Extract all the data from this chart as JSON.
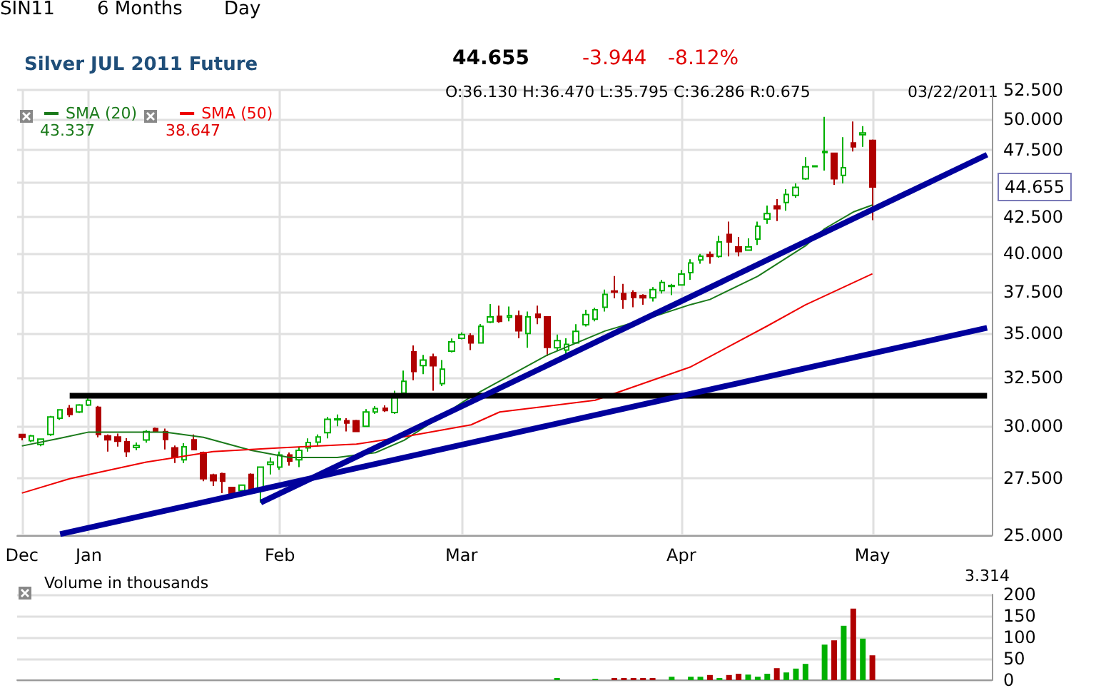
{
  "chart_data": [
    {
      "type": "candlestick",
      "title": "Silver JUL 2011 Future",
      "categories": [
        "Dec",
        null,
        null,
        null,
        null,
        null,
        null,
        "Jan",
        null,
        null,
        null,
        null,
        null,
        null,
        null,
        null,
        null,
        null,
        null,
        null,
        null,
        null,
        null,
        null,
        null,
        null,
        null,
        "Feb",
        null,
        null,
        null,
        null,
        null,
        null,
        null,
        null,
        null,
        null,
        null,
        null,
        null,
        null,
        null,
        null,
        null,
        null,
        "Mar",
        null,
        null,
        null,
        null,
        null,
        null,
        null,
        null,
        null,
        null,
        null,
        null,
        null,
        null,
        null,
        null,
        null,
        null,
        null,
        null,
        null,
        null,
        "Apr",
        null,
        null,
        null,
        null,
        null,
        null,
        null,
        null,
        null,
        null,
        null,
        null,
        null,
        null,
        null,
        null,
        null,
        null,
        null,
        "May",
        null,
        null,
        null,
        null,
        null,
        null,
        null,
        null,
        null,
        null,
        null,
        null
      ],
      "ohlc": [
        [
          29.57,
          29.6,
          29.28,
          29.43
        ],
        [
          29.27,
          29.55,
          29.2,
          29.5
        ],
        [
          29.08,
          29.36,
          29.0,
          29.34
        ],
        [
          29.57,
          30.5,
          29.5,
          30.45
        ],
        [
          30.38,
          30.85,
          30.3,
          30.81
        ],
        [
          30.87,
          31.06,
          30.45,
          30.57
        ],
        [
          30.7,
          31.1,
          30.65,
          31.06
        ],
        [
          31.06,
          31.44,
          31.0,
          31.31
        ],
        [
          30.94,
          31.01,
          29.43,
          29.57
        ],
        [
          29.5,
          29.57,
          28.74,
          29.31
        ],
        [
          29.45,
          29.62,
          28.98,
          29.24
        ],
        [
          29.21,
          29.39,
          28.49,
          28.74
        ],
        [
          28.94,
          29.18,
          28.81,
          29.03
        ],
        [
          29.3,
          29.78,
          29.17,
          29.71
        ],
        [
          29.86,
          29.92,
          29.67,
          29.71
        ],
        [
          29.71,
          29.86,
          28.84,
          29.33
        ],
        [
          28.92,
          29.03,
          28.2,
          28.46
        ],
        [
          28.35,
          29.14,
          28.2,
          28.97
        ],
        [
          29.31,
          29.57,
          28.83,
          28.83
        ],
        [
          28.7,
          28.74,
          27.36,
          27.47
        ],
        [
          27.64,
          27.7,
          27.14,
          27.38
        ],
        [
          27.7,
          27.75,
          26.82,
          27.36
        ],
        [
          27.07,
          27.1,
          26.66,
          26.78
        ],
        [
          26.93,
          27.2,
          26.78,
          27.18
        ],
        [
          27.67,
          27.72,
          26.9,
          26.93
        ],
        [
          26.93,
          28.01,
          26.39,
          28.01
        ],
        [
          28.13,
          28.46,
          27.67,
          28.24
        ],
        [
          28.01,
          28.74,
          27.88,
          28.58
        ],
        [
          28.58,
          28.7,
          28.07,
          28.29
        ],
        [
          28.35,
          28.95,
          28.01,
          28.8
        ],
        [
          28.92,
          29.38,
          28.74,
          29.18
        ],
        [
          29.2,
          29.57,
          29.02,
          29.45
        ],
        [
          29.66,
          30.45,
          29.38,
          30.33
        ],
        [
          30.3,
          30.57,
          29.98,
          30.35
        ],
        [
          30.26,
          30.38,
          29.72,
          30.14
        ],
        [
          30.26,
          30.3,
          29.72,
          29.72
        ],
        [
          29.98,
          30.85,
          29.95,
          30.7
        ],
        [
          30.7,
          31.0,
          30.6,
          30.87
        ],
        [
          30.89,
          31.04,
          30.7,
          30.77
        ],
        [
          30.67,
          31.81,
          30.6,
          31.44
        ],
        [
          31.68,
          32.89,
          31.56,
          32.31
        ],
        [
          33.94,
          34.3,
          32.37,
          32.84
        ],
        [
          33.17,
          33.76,
          32.7,
          33.47
        ],
        [
          33.64,
          33.83,
          31.81,
          33.16
        ],
        [
          32.19,
          33.47,
          32.05,
          32.97
        ],
        [
          33.98,
          34.7,
          33.9,
          34.5
        ],
        [
          34.71,
          35.05,
          34.65,
          34.93
        ],
        [
          34.86,
          35.0,
          34.04,
          34.44
        ],
        [
          34.44,
          35.55,
          34.4,
          35.41
        ],
        [
          35.66,
          36.75,
          35.6,
          35.97
        ],
        [
          36.0,
          36.65,
          35.62,
          35.7
        ],
        [
          35.95,
          36.6,
          35.7,
          36.05
        ],
        [
          36.03,
          36.35,
          34.71,
          35.15
        ],
        [
          34.99,
          36.29,
          34.17,
          35.97
        ],
        [
          36.13,
          36.65,
          35.53,
          35.93
        ],
        [
          35.97,
          35.97,
          33.7,
          34.19
        ],
        [
          34.17,
          34.93,
          33.98,
          34.58
        ],
        [
          34.04,
          34.71,
          33.82,
          34.36
        ],
        [
          34.44,
          35.53,
          34.4,
          35.12
        ],
        [
          35.5,
          36.4,
          35.4,
          36.11
        ],
        [
          35.83,
          36.52,
          35.7,
          36.4
        ],
        [
          36.55,
          37.64,
          36.29,
          37.34
        ],
        [
          37.55,
          38.5,
          37.1,
          37.49
        ],
        [
          37.4,
          38.0,
          36.45,
          37.05
        ],
        [
          37.45,
          37.6,
          36.55,
          37.16
        ],
        [
          37.28,
          37.35,
          36.7,
          37.13
        ],
        [
          37.13,
          37.8,
          36.9,
          37.64
        ],
        [
          37.58,
          38.25,
          37.4,
          38.09
        ],
        [
          37.85,
          38.0,
          37.3,
          37.9
        ],
        [
          37.94,
          38.9,
          37.9,
          38.63
        ],
        [
          38.72,
          39.6,
          38.27,
          39.35
        ],
        [
          39.55,
          39.95,
          39.3,
          39.8
        ],
        [
          39.9,
          40.1,
          39.3,
          39.79
        ],
        [
          39.79,
          41.17,
          39.7,
          40.75
        ],
        [
          41.27,
          42.16,
          39.79,
          40.75
        ],
        [
          40.42,
          41.1,
          39.79,
          40.1
        ],
        [
          40.2,
          41.0,
          40.2,
          40.42
        ],
        [
          40.95,
          42.16,
          40.55,
          41.83
        ],
        [
          42.33,
          43.3,
          42.0,
          42.73
        ],
        [
          43.28,
          43.77,
          42.2,
          43.07
        ],
        [
          43.52,
          44.5,
          42.93,
          44.11
        ],
        [
          44.04,
          44.93,
          43.87,
          44.64
        ],
        [
          45.28,
          46.93,
          45.2,
          46.19
        ],
        [
          46.2,
          46.3,
          46.15,
          46.25
        ],
        [
          47.3,
          50.2,
          45.9,
          47.38
        ],
        [
          47.24,
          47.3,
          44.82,
          45.28
        ],
        [
          45.53,
          48.52,
          44.93,
          46.12
        ],
        [
          48.06,
          49.81,
          47.38,
          47.75
        ],
        [
          48.72,
          49.42,
          47.75,
          48.87
        ],
        [
          48.26,
          48.33,
          42.26,
          44.655
        ],
        null,
        null,
        null,
        null,
        null,
        null,
        null,
        null,
        null,
        null,
        null,
        null
      ],
      "colors": [
        "#b00000",
        "#00b000",
        "#00b000",
        "#00b000",
        "#00b000",
        "#b00000",
        "#00b000",
        "#00b000",
        "#b00000",
        "#b00000",
        "#b00000",
        "#b00000",
        "#00b000",
        "#00b000",
        "#b00000",
        "#b00000",
        "#b00000",
        "#00b000",
        "#b00000",
        "#b00000",
        "#b00000",
        "#b00000",
        "#b00000",
        "#00b000",
        "#b00000",
        "#00b000",
        "#00b000",
        "#00b000",
        "#b00000",
        "#00b000",
        "#00b000",
        "#00b000",
        "#00b000",
        "#00b000",
        "#b00000",
        "#b00000",
        "#00b000",
        "#00b000",
        "#b00000",
        "#00b000",
        "#00b000",
        "#b00000",
        "#00b000",
        "#b00000",
        "#00b000",
        "#00b000",
        "#00b000",
        "#b00000",
        "#00b000",
        "#00b000",
        "#b00000",
        "#00b000",
        "#b00000",
        "#00b000",
        "#b00000",
        "#b00000",
        "#00b000",
        "#00b000",
        "#00b000",
        "#00b000",
        "#00b000",
        "#00b000",
        "#b00000",
        "#b00000",
        "#b00000",
        "#b00000",
        "#00b000",
        "#00b000",
        "#00b000",
        "#00b000",
        "#00b000",
        "#00b000",
        "#b00000",
        "#00b000",
        "#b00000",
        "#b00000",
        "#00b000",
        "#00b000",
        "#00b000",
        "#b00000",
        "#00b000",
        "#00b000",
        "#00b000",
        "#00b000",
        "#00b000",
        "#b00000",
        "#00b000",
        "#b00000",
        "#00b000",
        "#b00000",
        null,
        null,
        null,
        null,
        null,
        null,
        null,
        null,
        null,
        null,
        null,
        null
      ],
      "series": [
        {
          "name": "SMA (20)",
          "type": "line",
          "color": "#1a7a1a",
          "values": [
            29.01,
            null,
            null,
            null,
            29.39,
            null,
            null,
            29.69,
            null,
            null,
            null,
            null,
            null,
            null,
            null,
            29.69,
            null,
            null,
            null,
            29.43,
            null,
            null,
            null,
            null,
            28.8,
            null,
            null,
            null,
            28.46,
            null,
            null,
            null,
            null,
            28.46,
            null,
            null,
            null,
            28.69,
            null,
            null,
            29.29,
            null,
            null,
            30.21,
            null,
            null,
            null,
            31.49,
            null,
            null,
            null,
            null,
            null,
            null,
            null,
            33.76,
            null,
            null,
            null,
            null,
            null,
            35.13,
            null,
            null,
            null,
            null,
            35.97,
            null,
            null,
            null,
            36.72,
            null,
            37.03,
            null,
            null,
            null,
            null,
            38.49,
            null,
            null,
            null,
            null,
            40.49,
            null,
            41.66,
            null,
            null,
            42.84,
            null,
            43.34,
            null,
            null,
            null,
            null,
            null,
            null,
            null,
            null,
            null,
            null,
            null,
            null
          ]
        },
        {
          "name": "SMA (50)",
          "type": "line",
          "color": "#ee0000",
          "values": [
            26.82,
            null,
            null,
            null,
            null,
            27.47,
            null,
            null,
            null,
            null,
            null,
            null,
            null,
            28.24,
            null,
            null,
            null,
            null,
            null,
            null,
            28.74,
            null,
            null,
            null,
            null,
            null,
            null,
            28.92,
            null,
            null,
            null,
            null,
            null,
            null,
            null,
            29.1,
            null,
            null,
            null,
            null,
            29.46,
            null,
            null,
            null,
            null,
            null,
            null,
            30.05,
            null,
            null,
            30.7,
            null,
            null,
            null,
            null,
            null,
            null,
            null,
            null,
            null,
            31.31,
            null,
            null,
            null,
            null,
            null,
            null,
            null,
            null,
            null,
            33.1,
            null,
            null,
            null,
            null,
            null,
            null,
            null,
            35.43,
            null,
            null,
            null,
            36.7,
            null,
            null,
            null,
            null,
            null,
            null,
            38.65,
            null,
            null,
            null,
            null,
            null,
            null,
            null,
            null,
            null,
            null,
            null,
            null
          ]
        },
        {
          "type": "line",
          "color": "#000000",
          "values": [
            null,
            null,
            null,
            null,
            null,
            31.54,
            null,
            null,
            null,
            null,
            null,
            null,
            null,
            null,
            null,
            null,
            null,
            null,
            null,
            null,
            null,
            null,
            null,
            null,
            null,
            null,
            null,
            null,
            null,
            null,
            null,
            null,
            null,
            null,
            null,
            null,
            null,
            null,
            null,
            null,
            null,
            null,
            null,
            null,
            null,
            null,
            null,
            null,
            null,
            null,
            null,
            null,
            null,
            null,
            null,
            null,
            null,
            null,
            null,
            null,
            null,
            null,
            null,
            null,
            null,
            null,
            null,
            null,
            null,
            null,
            null,
            null,
            null,
            null,
            null,
            null,
            null,
            null,
            null,
            null,
            null,
            null,
            null,
            null,
            null,
            null,
            null,
            null,
            null,
            null,
            null,
            null,
            null,
            null,
            null,
            null,
            null,
            null,
            null,
            null,
            null,
            31.54
          ]
        },
        {
          "type": "line",
          "color": "#00009c",
          "values": [
            null,
            null,
            null,
            null,
            null,
            null,
            null,
            null,
            null,
            null,
            null,
            null,
            null,
            null,
            null,
            null,
            null,
            null,
            null,
            null,
            null,
            null,
            null,
            null,
            null,
            26.4,
            null,
            null,
            null,
            null,
            null,
            null,
            null,
            null,
            null,
            null,
            null,
            null,
            null,
            null,
            null,
            null,
            null,
            null,
            null,
            null,
            null,
            null,
            null,
            null,
            null,
            null,
            null,
            null,
            null,
            null,
            null,
            null,
            null,
            null,
            null,
            null,
            null,
            null,
            null,
            null,
            null,
            null,
            null,
            null,
            null,
            null,
            null,
            null,
            null,
            null,
            null,
            null,
            null,
            null,
            null,
            null,
            null,
            null,
            null,
            null,
            null,
            null,
            null,
            null,
            null,
            null,
            null,
            null,
            null,
            null,
            null,
            null,
            null,
            null,
            null,
            47.13
          ]
        },
        {
          "type": "line",
          "color": "#00009c",
          "values": [
            null,
            null,
            null,
            null,
            25.05,
            null,
            null,
            null,
            null,
            null,
            null,
            null,
            null,
            null,
            null,
            null,
            null,
            null,
            null,
            null,
            null,
            null,
            null,
            null,
            null,
            null,
            null,
            null,
            null,
            null,
            null,
            null,
            null,
            null,
            null,
            null,
            null,
            null,
            null,
            null,
            null,
            null,
            null,
            null,
            null,
            null,
            null,
            null,
            null,
            null,
            null,
            null,
            null,
            null,
            null,
            null,
            null,
            null,
            null,
            null,
            null,
            null,
            null,
            null,
            null,
            null,
            null,
            null,
            null,
            null,
            null,
            null,
            null,
            null,
            null,
            null,
            null,
            null,
            null,
            null,
            null,
            null,
            null,
            null,
            null,
            null,
            null,
            null,
            null,
            null,
            null,
            null,
            null,
            null,
            null,
            null,
            null,
            null,
            null,
            null,
            null,
            35.32
          ]
        }
      ],
      "ylim": [
        25,
        52.5
      ],
      "yticks": [
        {
          "value": 25,
          "label": "25.000"
        },
        {
          "value": 27.5,
          "label": "27.500"
        },
        {
          "value": 30,
          "label": "30.000"
        },
        {
          "value": 32.5,
          "label": "32.500"
        },
        {
          "value": 35,
          "label": "35.000"
        },
        {
          "value": 37.5,
          "label": "37.500"
        },
        {
          "value": 40,
          "label": "40.000"
        },
        {
          "value": 42.5,
          "label": "42.500"
        },
        {
          "value": 45,
          "label": null
        },
        {
          "value": 47.5,
          "label": "47.500"
        },
        {
          "value": 50,
          "label": "50.000"
        },
        {
          "value": 52.5,
          "label": "52.500"
        }
      ],
      "log": true,
      "grid": true,
      "legend": "top left",
      "marker": "none",
      "annotations": [
        "SIN11",
        "6 Months",
        "Day",
        "44.655",
        "-3.944",
        "-8.12%",
        "O:36.130 H:36.470 L:35.795 C:36.286 R:0.675",
        "03/22/2011",
        "43.337",
        "38.647",
        "44.655"
      ]
    },
    {
      "type": "bar",
      "title": "Volume in thousands",
      "categories": [
        null,
        null,
        null,
        null,
        null,
        null,
        null,
        null,
        null,
        null,
        null,
        null,
        null,
        null,
        null,
        null,
        null,
        null,
        null,
        null,
        null,
        null,
        null,
        null,
        null,
        null,
        null,
        null,
        null,
        null,
        null,
        null,
        null,
        null,
        null,
        null,
        null,
        null,
        null,
        null,
        null,
        null,
        null,
        null,
        null,
        null,
        null,
        null,
        null,
        null,
        null,
        null,
        null,
        null,
        null,
        null,
        null,
        null,
        null,
        null,
        null,
        null,
        null,
        null,
        null,
        null,
        null,
        null,
        null,
        null,
        null,
        null,
        null,
        null,
        null,
        null,
        null,
        null,
        null,
        null,
        null,
        null,
        null,
        null,
        null,
        null,
        null,
        null,
        null,
        null,
        null,
        null,
        null,
        null,
        null,
        null,
        null,
        null,
        null,
        null,
        null,
        null
      ],
      "values": [
        null,
        null,
        null,
        null,
        null,
        null,
        null,
        null,
        null,
        null,
        null,
        null,
        null,
        null,
        null,
        null,
        null,
        null,
        null,
        null,
        null,
        null,
        null,
        null,
        null,
        null,
        null,
        null,
        null,
        null,
        null,
        null,
        null,
        null,
        null,
        null,
        null,
        null,
        null,
        null,
        null,
        null,
        null,
        null,
        null,
        null,
        null,
        null,
        null,
        null,
        null,
        null,
        null,
        null,
        null,
        null,
        5,
        null,
        null,
        null,
        3,
        null,
        5,
        5,
        5,
        5,
        5,
        null,
        8,
        null,
        8,
        8,
        12,
        5,
        12,
        15,
        13,
        8,
        15,
        28,
        18,
        27,
        38,
        null,
        83,
        93,
        127,
        167,
        97,
        58,
        null,
        null,
        null,
        null,
        null,
        null,
        null,
        null,
        null,
        null,
        null,
        null
      ],
      "colors": [
        null,
        null,
        null,
        null,
        null,
        null,
        null,
        null,
        null,
        null,
        null,
        null,
        null,
        null,
        null,
        null,
        null,
        null,
        null,
        null,
        null,
        null,
        null,
        null,
        null,
        null,
        null,
        null,
        null,
        null,
        null,
        null,
        null,
        null,
        null,
        null,
        null,
        null,
        null,
        null,
        null,
        null,
        null,
        null,
        null,
        null,
        null,
        null,
        null,
        null,
        null,
        null,
        null,
        null,
        null,
        null,
        "#00b000",
        null,
        null,
        null,
        "#00b000",
        null,
        "#b00000",
        "#b00000",
        "#b00000",
        "#b00000",
        "#b00000",
        null,
        "#00b000",
        null,
        "#00b000",
        "#00b000",
        "#b00000",
        "#00b000",
        "#b00000",
        "#b00000",
        "#00b000",
        "#00b000",
        "#00b000",
        "#b00000",
        "#00b000",
        "#00b000",
        "#00b000",
        null,
        "#00b000",
        "#b00000",
        "#00b000",
        "#b00000",
        "#00b000",
        "#b00000",
        null,
        null,
        null,
        null,
        null,
        null,
        null,
        null,
        null,
        null,
        null,
        null
      ],
      "ylim": [
        0,
        200
      ],
      "yticks": [
        0,
        50,
        100,
        150,
        200
      ],
      "grid": "y",
      "tick_labels": "y",
      "annotations": [
        "3.314"
      ]
    }
  ]
}
